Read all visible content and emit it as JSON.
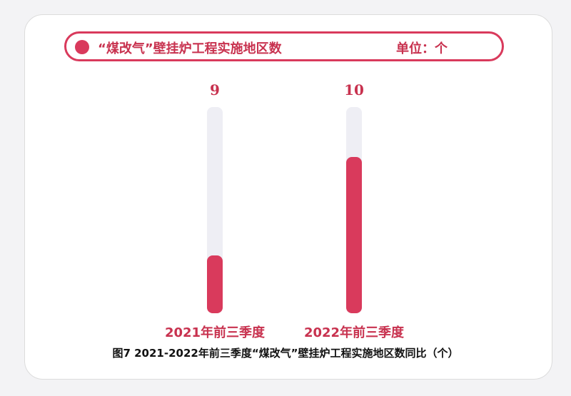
{
  "chart_data": {
    "type": "bar",
    "title": "“煤改气”壁挂炉工程实施地区数",
    "unit": "单位：个",
    "categories": [
      "2021年前三季度",
      "2022年前三季度"
    ],
    "values": [
      9,
      10
    ],
    "data_labels": [
      "9",
      "10"
    ],
    "caption": "图7 2021-2022年前三季度“煤改气”壁挂炉工程实施地区数同比（个）",
    "colors": {
      "bar": "#d93a5c",
      "track": "#eeeef4",
      "text": "#c8324f"
    }
  }
}
